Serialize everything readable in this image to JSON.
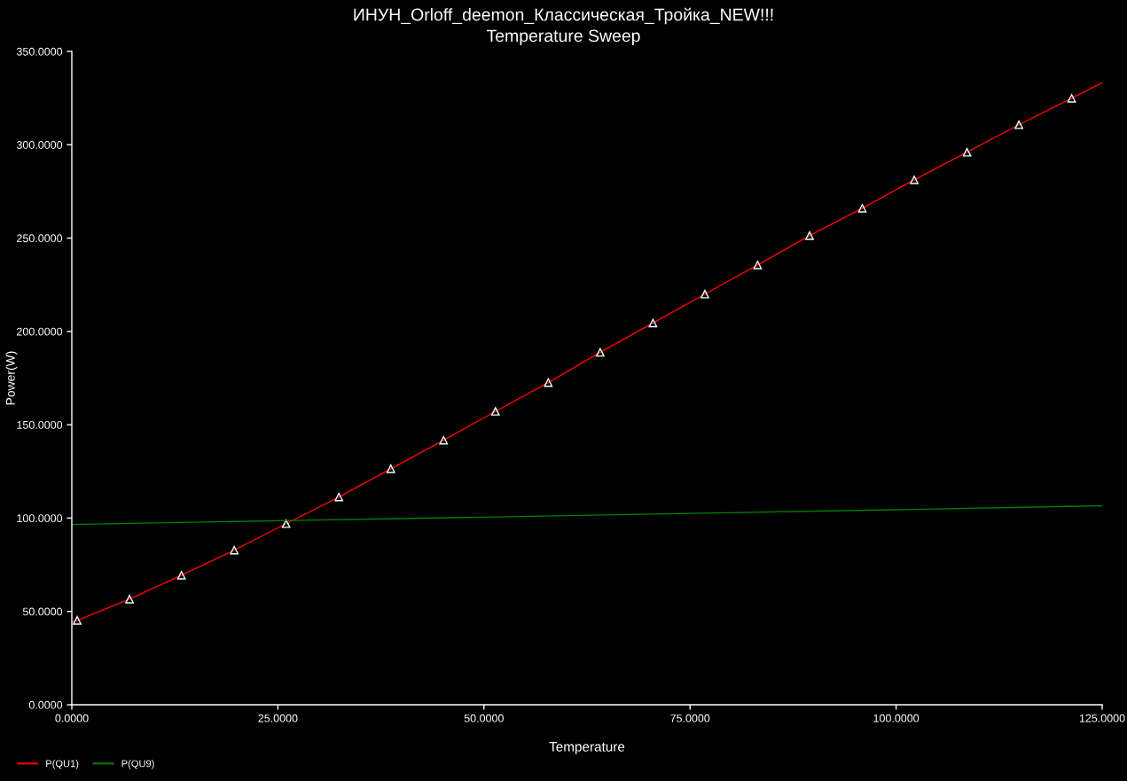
{
  "chart_data": {
    "type": "line",
    "title": "ИНУН_Orloff_deemon_Классическая_Тройка_NEW!!!",
    "subtitle": "Temperature Sweep",
    "xlabel": "Temperature",
    "ylabel": "Power(W)",
    "xlim": [
      0,
      125
    ],
    "xticks": [
      {
        "value": 0,
        "label": "0.0000"
      },
      {
        "value": 25,
        "label": "25.0000"
      },
      {
        "value": 50,
        "label": "50.0000"
      },
      {
        "value": 75,
        "label": "75.0000"
      },
      {
        "value": 100,
        "label": "100.0000"
      },
      {
        "value": 125,
        "label": "125.0000"
      }
    ],
    "ylim": [
      0,
      350
    ],
    "yticks": [
      {
        "value": 0,
        "label": "0.0000"
      },
      {
        "value": 50,
        "label": "50.0000"
      },
      {
        "value": 100,
        "label": "100.0000"
      },
      {
        "value": 150,
        "label": "150.0000"
      },
      {
        "value": 200,
        "label": "200.0000"
      },
      {
        "value": 250,
        "label": "250.0000"
      },
      {
        "value": 300,
        "label": "300.0000"
      },
      {
        "value": 350,
        "label": "350.0000"
      }
    ],
    "legend": "bottom left",
    "line_style": "solid",
    "series": [
      {
        "name": "P(QU1)",
        "color": "#ff0000",
        "marker": "triangle",
        "x": [
          0,
          0.65,
          7.0,
          13.3,
          19.7,
          26.0,
          32.4,
          38.7,
          45.1,
          51.4,
          57.8,
          64.1,
          70.5,
          76.8,
          83.2,
          89.5,
          95.9,
          102.2,
          108.6,
          114.9,
          121.3,
          125
        ],
        "values": [
          44.3,
          45.2,
          56.6,
          69.4,
          82.8,
          97.0,
          111.3,
          126.4,
          141.7,
          157.2,
          172.6,
          188.8,
          204.5,
          220.0,
          235.6,
          251.3,
          266.0,
          281.2,
          296.0,
          310.7,
          324.9,
          333.3
        ]
      },
      {
        "name": "P(QU9)",
        "color": "#008000",
        "marker": "none",
        "x": [
          0,
          25,
          50,
          75,
          100,
          125
        ],
        "values": [
          96.6,
          98.6,
          100.5,
          102.5,
          104.5,
          106.6
        ]
      }
    ]
  }
}
